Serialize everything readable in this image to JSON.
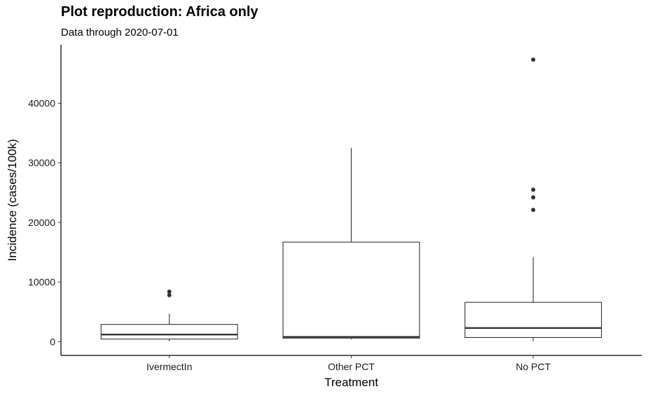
{
  "chart_data": {
    "type": "boxplot",
    "title": "Plot reproduction: Africa only",
    "subtitle": "Data through 2020-07-01",
    "xlabel": "Treatment",
    "ylabel": "Incidence (cases/100k)",
    "categories": [
      "IvermectIn",
      "Other PCT",
      "No PCT"
    ],
    "y_ticks": [
      0,
      10000,
      20000,
      30000,
      40000
    ],
    "y_tick_labels": [
      "0",
      "10000",
      "20000",
      "30000",
      "40000"
    ],
    "ylim": [
      -2300,
      49800
    ],
    "grid": false,
    "boxes": [
      {
        "category": "IvermectIn",
        "min": 50,
        "q1": 450,
        "median": 1200,
        "q3": 2900,
        "max": 4700,
        "outliers": [
          7800,
          8400
        ]
      },
      {
        "category": "Other PCT",
        "min": 400,
        "q1": 600,
        "median": 800,
        "q3": 16700,
        "max": 32500,
        "outliers": []
      },
      {
        "category": "No PCT",
        "min": 100,
        "q1": 700,
        "median": 2300,
        "q3": 6600,
        "max": 14200,
        "outliers": [
          22100,
          24200,
          25500,
          47300
        ]
      }
    ],
    "colors": {
      "box_stroke": "#333333",
      "point": "#333333",
      "axis": "#000000"
    }
  }
}
